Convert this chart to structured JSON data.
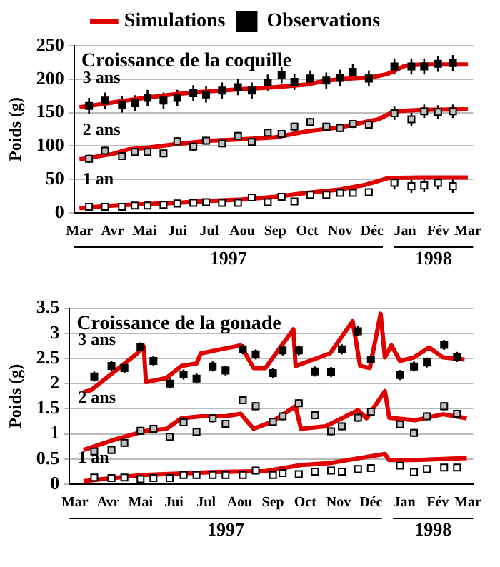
{
  "chart_data": [
    {
      "type": "line",
      "title": "Croissance de la coquille",
      "ylabel": "Poids (g)",
      "legend": "top",
      "grid": "y",
      "xlim": [
        "1997-02-24",
        "1998-03-06"
      ],
      "xticks": [
        {
          "value": "1997-03-01",
          "label": "Mar"
        },
        {
          "value": "1997-04-01",
          "label": "Avr"
        },
        {
          "value": "1997-05-01",
          "label": "Mai"
        },
        {
          "value": "1997-06-01",
          "label": "Jui"
        },
        {
          "value": "1997-07-01",
          "label": "Jul"
        },
        {
          "value": "1997-08-01",
          "label": "Aou"
        },
        {
          "value": "1997-09-01",
          "label": "Sep"
        },
        {
          "value": "1997-10-01",
          "label": "Oct"
        },
        {
          "value": "1997-11-01",
          "label": "Nov"
        },
        {
          "value": "1997-12-01",
          "label": "Déc"
        },
        {
          "value": "1998-01-01",
          "label": "Jan"
        },
        {
          "value": "1998-02-01",
          "label": "Fév"
        },
        {
          "value": "1998-03-01",
          "label": "Mar"
        }
      ],
      "ylim": [
        0,
        250
      ],
      "yticks": [
        0,
        50,
        100,
        150,
        200,
        250
      ],
      "annotations": [
        "1997",
        "1998",
        "3 ans",
        "2 ans",
        "1 an"
      ],
      "series": [
        {
          "name": "Simulations",
          "color": "#e00000",
          "x": [
            "1997-03-01",
            "1997-04-01",
            "1997-05-01",
            "1997-06-01",
            "1997-07-01",
            "1997-08-01",
            "1997-09-01",
            "1997-10-01",
            "1997-10-16",
            "1997-11-01",
            "1997-12-01",
            "1997-12-16",
            "1998-01-01",
            "1998-01-16",
            "1998-02-01",
            "1998-03-01"
          ],
          "values": [
            158,
            165,
            172,
            178,
            182,
            185,
            188,
            192,
            197,
            200,
            203,
            208,
            220,
            222,
            222,
            222
          ]
        },
        {
          "color": "#e00000",
          "x": [
            "1997-03-01",
            "1997-04-01",
            "1997-04-16",
            "1997-05-01",
            "1997-06-01",
            "1997-07-01",
            "1997-08-01",
            "1997-09-01",
            "1997-10-01",
            "1997-11-01",
            "1997-11-25",
            "1997-12-07",
            "1997-12-22",
            "1998-01-16",
            "1998-03-01"
          ],
          "values": [
            80,
            88,
            95,
            97,
            103,
            108,
            110,
            113,
            122,
            128,
            136,
            140,
            152,
            154,
            155
          ]
        },
        {
          "color": "#e00000",
          "x": [
            "1997-03-01",
            "1997-04-01",
            "1997-05-01",
            "1997-06-01",
            "1997-07-01",
            "1997-08-01",
            "1997-09-01",
            "1997-10-01",
            "1997-11-01",
            "1997-11-25",
            "1997-12-16",
            "1998-01-16",
            "1998-03-01"
          ],
          "values": [
            7,
            11,
            13,
            15,
            18,
            20,
            24,
            30,
            35,
            42,
            52,
            53,
            53
          ]
        },
        {
          "type": "scatter",
          "name": "Observations",
          "marker": "square",
          "color": "#000000",
          "x": [
            "1997-03-10",
            "1997-03-25",
            "1997-04-10",
            "1997-04-22",
            "1997-05-04",
            "1997-05-19",
            "1997-06-01",
            "1997-06-16",
            "1997-06-28",
            "1997-07-13",
            "1997-07-28",
            "1997-08-10",
            "1997-08-25",
            "1997-09-07",
            "1997-09-19",
            "1997-10-04",
            "1997-10-19",
            "1997-11-01",
            "1997-11-13",
            "1997-11-28",
            "1997-12-22",
            "1998-01-07",
            "1998-01-19",
            "1998-02-01",
            "1998-02-15"
          ],
          "values": [
            160,
            168,
            162,
            164,
            172,
            168,
            172,
            179,
            177,
            183,
            188,
            183,
            195,
            206,
            196,
            201,
            198,
            202,
            211,
            201,
            219,
            219,
            219,
            223,
            224
          ],
          "errors": [
            12,
            12,
            12,
            12,
            12,
            12,
            12,
            12,
            12,
            12,
            12,
            12,
            12,
            12,
            12,
            12,
            12,
            12,
            12,
            12,
            12,
            12,
            12,
            12,
            12
          ]
        },
        {
          "type": "scatter",
          "marker": "square",
          "color": "#c0c0c0",
          "x": [
            "1997-03-10",
            "1997-03-25",
            "1997-04-10",
            "1997-04-22",
            "1997-05-04",
            "1997-05-19",
            "1997-06-01",
            "1997-06-16",
            "1997-06-28",
            "1997-07-13",
            "1997-07-28",
            "1997-08-10",
            "1997-08-25",
            "1997-09-07",
            "1997-09-19",
            "1997-10-04",
            "1997-10-19",
            "1997-11-01",
            "1997-11-13",
            "1997-11-28",
            "1997-12-22",
            "1998-01-07",
            "1998-01-19",
            "1998-02-01",
            "1998-02-15"
          ],
          "values": [
            81,
            93,
            85,
            91,
            91,
            89,
            107,
            99,
            108,
            104,
            115,
            106,
            120,
            118,
            129,
            136,
            129,
            127,
            133,
            132,
            149,
            140,
            152,
            151,
            152
          ],
          "errors": [
            6,
            6,
            6,
            6,
            6,
            6,
            6,
            6,
            6,
            6,
            6,
            6,
            6,
            6,
            6,
            6,
            6,
            6,
            6,
            6,
            10,
            10,
            10,
            10,
            10
          ]
        },
        {
          "type": "scatter",
          "marker": "square",
          "color": "#ffffff",
          "x": [
            "1997-03-10",
            "1997-03-25",
            "1997-04-10",
            "1997-04-22",
            "1997-05-04",
            "1997-05-19",
            "1997-06-01",
            "1997-06-16",
            "1997-06-28",
            "1997-07-13",
            "1997-07-28",
            "1997-08-10",
            "1997-08-25",
            "1997-09-07",
            "1997-09-19",
            "1997-10-04",
            "1997-10-19",
            "1997-11-01",
            "1997-11-13",
            "1997-11-28",
            "1997-12-22",
            "1998-01-07",
            "1998-01-19",
            "1998-02-01",
            "1998-02-15"
          ],
          "values": [
            9,
            9,
            9,
            11,
            11,
            12,
            14,
            15,
            16,
            15,
            15,
            23,
            16,
            24,
            17,
            27,
            27,
            30,
            30,
            31,
            45,
            40,
            41,
            45,
            40
          ],
          "errors": [
            3,
            3,
            3,
            3,
            3,
            3,
            3,
            3,
            3,
            3,
            3,
            3,
            3,
            3,
            3,
            3,
            3,
            3,
            3,
            3,
            10,
            10,
            10,
            10,
            10
          ]
        }
      ]
    },
    {
      "type": "line",
      "title": "Croissance de la gonade",
      "ylabel": "Poids (g)",
      "grid": "y",
      "xlim": [
        "1997-02-24",
        "1998-03-06"
      ],
      "xticks": [
        {
          "value": "1997-03-01",
          "label": "Mar"
        },
        {
          "value": "1997-04-01",
          "label": "Avr"
        },
        {
          "value": "1997-05-01",
          "label": "Mai"
        },
        {
          "value": "1997-06-01",
          "label": "Jui"
        },
        {
          "value": "1997-07-01",
          "label": "Jul"
        },
        {
          "value": "1997-08-01",
          "label": "Aou"
        },
        {
          "value": "1997-09-01",
          "label": "Sep"
        },
        {
          "value": "1997-10-01",
          "label": "Oct"
        },
        {
          "value": "1997-11-01",
          "label": "Nov"
        },
        {
          "value": "1997-12-01",
          "label": "Déc"
        },
        {
          "value": "1998-01-01",
          "label": "Jan"
        },
        {
          "value": "1998-02-01",
          "label": "Fév"
        },
        {
          "value": "1998-03-01",
          "label": "Mar"
        }
      ],
      "ylim": [
        0,
        3.5
      ],
      "yticks": [
        0,
        0.5,
        1,
        1.5,
        2,
        2.5,
        3,
        3.5
      ],
      "annotations": [
        "1997",
        "1998",
        "3 ans",
        "2 ans",
        "1 an"
      ],
      "series": [
        {
          "color": "#e00000",
          "x": [
            "1997-03-09",
            "1997-03-16",
            "1997-04-28",
            "1997-05-04",
            "1997-05-06",
            "1997-05-25",
            "1997-06-08",
            "1997-06-22",
            "1997-06-26",
            "1997-07-14",
            "1997-08-02",
            "1997-08-14",
            "1997-08-25",
            "1997-09-20",
            "1997-09-22",
            "1997-10-24",
            "1997-11-14",
            "1997-11-21",
            "1997-11-30",
            "1997-12-10",
            "1997-12-14",
            "1997-12-20",
            "1997-12-28",
            "1998-01-10",
            "1998-01-24",
            "1998-02-06",
            "1998-02-26"
          ],
          "values": [
            1.83,
            1.87,
            2.6,
            2.74,
            2.03,
            2.11,
            2.35,
            2.4,
            2.6,
            2.68,
            2.76,
            2.31,
            2.31,
            3.08,
            2.35,
            2.6,
            3.24,
            2.35,
            2.31,
            3.39,
            2.52,
            2.76,
            2.45,
            2.52,
            2.72,
            2.52,
            2.48
          ]
        },
        {
          "color": "#e00000",
          "x": [
            "1997-03-09",
            "1997-04-09",
            "1997-05-06",
            "1997-05-25",
            "1997-06-08",
            "1997-06-26",
            "1997-07-19",
            "1997-08-02",
            "1997-08-14",
            "1997-08-30",
            "1997-09-22",
            "1997-09-27",
            "1997-10-20",
            "1997-11-19",
            "1997-11-27",
            "1997-12-14",
            "1997-12-18",
            "1998-01-11",
            "1998-02-06",
            "1998-02-28"
          ],
          "values": [
            0.68,
            0.9,
            1.06,
            1.1,
            1.31,
            1.35,
            1.35,
            1.4,
            1.1,
            1.23,
            1.55,
            1.1,
            1.15,
            1.47,
            1.31,
            1.85,
            1.32,
            1.27,
            1.39,
            1.31
          ]
        },
        {
          "color": "#e00000",
          "x": [
            "1997-03-09",
            "1997-05-02",
            "1997-07-10",
            "1997-08-25",
            "1997-09-27",
            "1997-10-24",
            "1997-11-21",
            "1997-12-14",
            "1997-12-18",
            "1998-01-11",
            "1998-02-28"
          ],
          "values": [
            0.06,
            0.18,
            0.24,
            0.26,
            0.38,
            0.42,
            0.52,
            0.6,
            0.48,
            0.48,
            0.52
          ]
        },
        {
          "type": "scatter",
          "marker": "square",
          "color": "#000000",
          "x": [
            "1997-03-19",
            "1997-04-04",
            "1997-04-16",
            "1997-05-01",
            "1997-05-13",
            "1997-05-28",
            "1997-06-10",
            "1997-06-22",
            "1997-07-07",
            "1997-07-19",
            "1997-08-04",
            "1997-08-16",
            "1997-09-01",
            "1997-09-10",
            "1997-09-25",
            "1997-10-10",
            "1997-10-25",
            "1997-11-04",
            "1997-11-19",
            "1997-12-01",
            "1997-12-28",
            "1998-01-10",
            "1998-01-22",
            "1998-02-07",
            "1998-02-19"
          ],
          "values": [
            2.14,
            2.35,
            2.31,
            2.72,
            2.45,
            2.0,
            2.18,
            2.1,
            2.34,
            2.26,
            2.68,
            2.58,
            2.21,
            2.66,
            2.66,
            2.24,
            2.23,
            2.68,
            3.04,
            2.48,
            2.17,
            2.34,
            2.42,
            2.77,
            2.53
          ],
          "errors": [
            0.1,
            0.1,
            0.1,
            0.1,
            0.1,
            0.1,
            0.1,
            0.1,
            0.1,
            0.1,
            0.1,
            0.1,
            0.1,
            0.1,
            0.1,
            0.1,
            0.1,
            0.1,
            0.1,
            0.1,
            0.1,
            0.1,
            0.1,
            0.1,
            0.1
          ]
        },
        {
          "type": "scatter",
          "marker": "square",
          "color": "#c0c0c0",
          "x": [
            "1997-03-19",
            "1997-04-04",
            "1997-04-16",
            "1997-05-01",
            "1997-05-13",
            "1997-05-28",
            "1997-06-10",
            "1997-06-22",
            "1997-07-07",
            "1997-07-19",
            "1997-08-04",
            "1997-08-16",
            "1997-09-01",
            "1997-09-10",
            "1997-09-25",
            "1997-10-10",
            "1997-10-25",
            "1997-11-04",
            "1997-11-19",
            "1997-12-01",
            "1997-12-28",
            "1998-01-10",
            "1998-01-22",
            "1998-02-07",
            "1998-02-19"
          ],
          "values": [
            0.65,
            0.68,
            0.82,
            1.06,
            1.1,
            0.94,
            1.23,
            1.04,
            1.31,
            1.2,
            1.67,
            1.55,
            1.24,
            1.35,
            1.61,
            1.37,
            1.05,
            1.15,
            1.32,
            1.44,
            1.19,
            1.02,
            1.35,
            1.55,
            1.4
          ],
          "errors": [
            0.08,
            0.08,
            0.08,
            0.08,
            0.08,
            0.08,
            0.08,
            0.08,
            0.08,
            0.08,
            0.08,
            0.08,
            0.08,
            0.08,
            0.08,
            0.08,
            0.08,
            0.08,
            0.08,
            0.08,
            0.08,
            0.08,
            0.08,
            0.08,
            0.08
          ]
        },
        {
          "type": "scatter",
          "marker": "square",
          "color": "#ffffff",
          "x": [
            "1997-03-19",
            "1997-04-04",
            "1997-04-16",
            "1997-05-01",
            "1997-05-13",
            "1997-05-28",
            "1997-06-10",
            "1997-06-22",
            "1997-07-07",
            "1997-07-19",
            "1997-08-04",
            "1997-08-16",
            "1997-09-01",
            "1997-09-10",
            "1997-09-25",
            "1997-10-10",
            "1997-10-25",
            "1997-11-04",
            "1997-11-19",
            "1997-12-01",
            "1997-12-28",
            "1998-01-10",
            "1998-01-22",
            "1998-02-07",
            "1998-02-19"
          ],
          "values": [
            0.13,
            0.12,
            0.13,
            0.1,
            0.12,
            0.12,
            0.18,
            0.18,
            0.18,
            0.18,
            0.18,
            0.27,
            0.18,
            0.22,
            0.2,
            0.25,
            0.27,
            0.25,
            0.3,
            0.32,
            0.37,
            0.24,
            0.3,
            0.33,
            0.33
          ]
        }
      ]
    }
  ]
}
